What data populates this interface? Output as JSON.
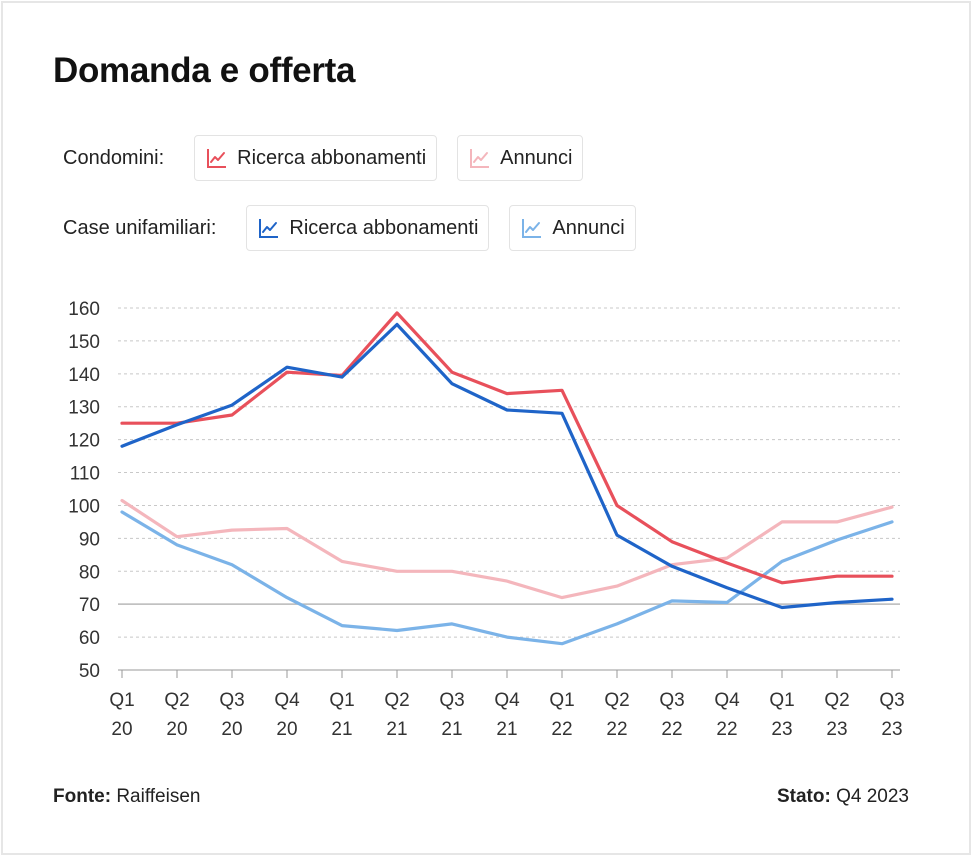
{
  "title": "Domanda e offerta",
  "legend": {
    "group1_label": "Condomini:",
    "group2_label": "Case unifamiliari:",
    "items": [
      {
        "label": "Ricerca abbonamenti",
        "color": "#e8505b",
        "icon": "line-chart-icon"
      },
      {
        "label": "Annunci",
        "color": "#f4b6bc",
        "icon": "line-chart-icon"
      },
      {
        "label": "Ricerca abbonamenti",
        "color": "#1f64c8",
        "icon": "line-chart-icon"
      },
      {
        "label": "Annunci",
        "color": "#7bb3e8",
        "icon": "line-chart-icon"
      }
    ]
  },
  "footer": {
    "source_label": "Fonte:",
    "source_value": "Raiffeisen",
    "state_label": "Stato:",
    "state_value": "Q4 2023"
  },
  "chart_data": {
    "type": "line",
    "categories": [
      [
        "Q1",
        "20"
      ],
      [
        "Q2",
        "20"
      ],
      [
        "Q3",
        "20"
      ],
      [
        "Q4",
        "20"
      ],
      [
        "Q1",
        "21"
      ],
      [
        "Q2",
        "21"
      ],
      [
        "Q3",
        "21"
      ],
      [
        "Q4",
        "21"
      ],
      [
        "Q1",
        "22"
      ],
      [
        "Q2",
        "22"
      ],
      [
        "Q3",
        "22"
      ],
      [
        "Q4",
        "22"
      ],
      [
        "Q1",
        "23"
      ],
      [
        "Q2",
        "23"
      ],
      [
        "Q3",
        "23"
      ]
    ],
    "ylim": [
      50,
      160
    ],
    "yticks": [
      50,
      60,
      70,
      80,
      90,
      100,
      110,
      120,
      130,
      140,
      150,
      160
    ],
    "reference_line": 70,
    "grid": true,
    "series": [
      {
        "name": "Condomini: Ricerca abbonamenti",
        "color": "#e8505b",
        "values": [
          125,
          125,
          127.5,
          140.5,
          139.5,
          158.5,
          140.5,
          134,
          135,
          100,
          89,
          82.5,
          76.5,
          78.5,
          78.5
        ]
      },
      {
        "name": "Condomini: Annunci",
        "color": "#f4b6bc",
        "values": [
          101.5,
          90.5,
          92.5,
          93,
          83,
          80,
          80,
          77,
          72,
          75.5,
          82,
          84,
          95,
          95,
          99.5
        ]
      },
      {
        "name": "Case unifamiliari: Ricerca abbonamenti",
        "color": "#1f64c8",
        "values": [
          118,
          124.5,
          130.5,
          142,
          139,
          155,
          137,
          129,
          128,
          91,
          81.5,
          75,
          69,
          70.5,
          71.5
        ]
      },
      {
        "name": "Case unifamiliari: Annunci",
        "color": "#7bb3e8",
        "values": [
          98,
          88,
          82,
          72,
          63.5,
          62,
          64,
          60,
          58,
          64,
          71,
          70.5,
          83,
          89.5,
          95
        ]
      }
    ]
  }
}
